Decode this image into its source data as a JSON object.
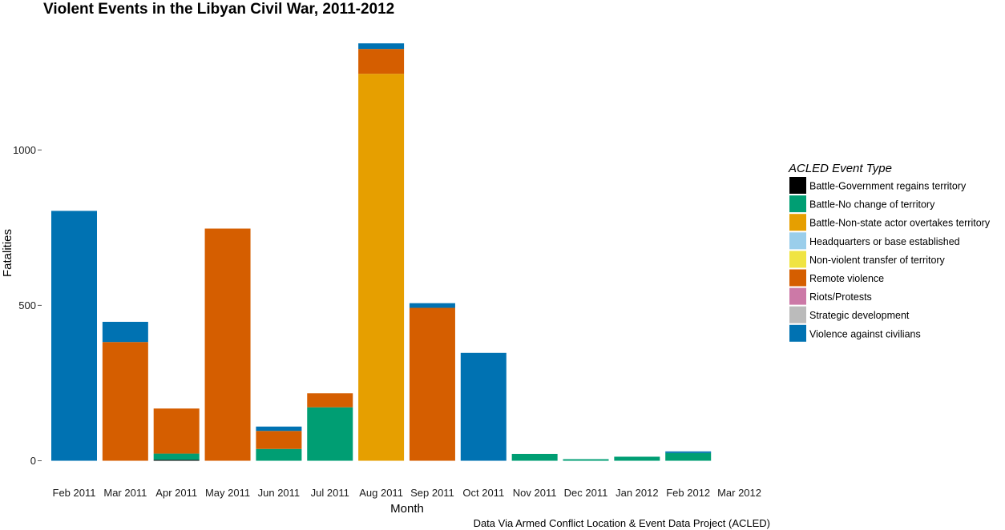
{
  "chart_data": {
    "type": "bar",
    "stacked": true,
    "title": "Violent Events in the Libyan Civil War, 2011-2012",
    "xlabel": "Month",
    "ylabel": "Fatalities",
    "caption": "Data Via Armed Conflict Location & Event Data Project (ACLED)",
    "ylim": [
      0,
      1400
    ],
    "yticks": [
      0,
      500,
      1000
    ],
    "grid": false,
    "legend": {
      "title": "ACLED Event Type",
      "position": "right"
    },
    "categories": [
      "Feb 2011",
      "Mar 2011",
      "Apr 2011",
      "May 2011",
      "Jun 2011",
      "Jul 2011",
      "Aug 2011",
      "Sep 2011",
      "Oct 2011",
      "Nov 2011",
      "Dec 2011",
      "Jan 2012",
      "Feb 2012",
      "Mar 2012"
    ],
    "series": [
      {
        "name": "Battle-Government regains territory",
        "color": "#000000",
        "values": [
          0,
          0,
          3,
          0,
          0,
          0,
          0,
          0,
          0,
          0,
          0,
          0,
          0,
          0
        ]
      },
      {
        "name": "Battle-No change of territory",
        "color": "#009E73",
        "values": [
          0,
          0,
          20,
          0,
          38,
          172,
          0,
          0,
          0,
          22,
          5,
          13,
          25,
          0
        ]
      },
      {
        "name": "Battle-Non-state actor overtakes territory",
        "color": "#E69F00",
        "values": [
          0,
          0,
          0,
          0,
          0,
          0,
          1245,
          0,
          0,
          0,
          0,
          0,
          0,
          0
        ]
      },
      {
        "name": "Headquarters or base established",
        "color": "#9ACEEB",
        "values": [
          0,
          0,
          0,
          0,
          0,
          0,
          0,
          0,
          0,
          0,
          0,
          0,
          0,
          0
        ]
      },
      {
        "name": "Non-violent transfer of territory",
        "color": "#F0E442",
        "values": [
          0,
          0,
          0,
          0,
          0,
          0,
          0,
          0,
          0,
          0,
          0,
          0,
          0,
          0
        ]
      },
      {
        "name": "Remote violence",
        "color": "#D55E00",
        "values": [
          0,
          382,
          145,
          747,
          58,
          45,
          80,
          492,
          0,
          0,
          0,
          0,
          0,
          0
        ]
      },
      {
        "name": "Riots/Protests",
        "color": "#CC79A7",
        "values": [
          0,
          0,
          0,
          0,
          0,
          0,
          0,
          0,
          0,
          0,
          0,
          0,
          0,
          0
        ]
      },
      {
        "name": "Strategic development",
        "color": "#BBBBBB",
        "values": [
          0,
          0,
          0,
          0,
          0,
          0,
          0,
          0,
          0,
          0,
          0,
          0,
          0,
          0
        ]
      },
      {
        "name": "Violence against civilians",
        "color": "#0072B2",
        "values": [
          804,
          65,
          0,
          0,
          14,
          0,
          18,
          15,
          347,
          0,
          0,
          0,
          5,
          0
        ]
      }
    ]
  }
}
